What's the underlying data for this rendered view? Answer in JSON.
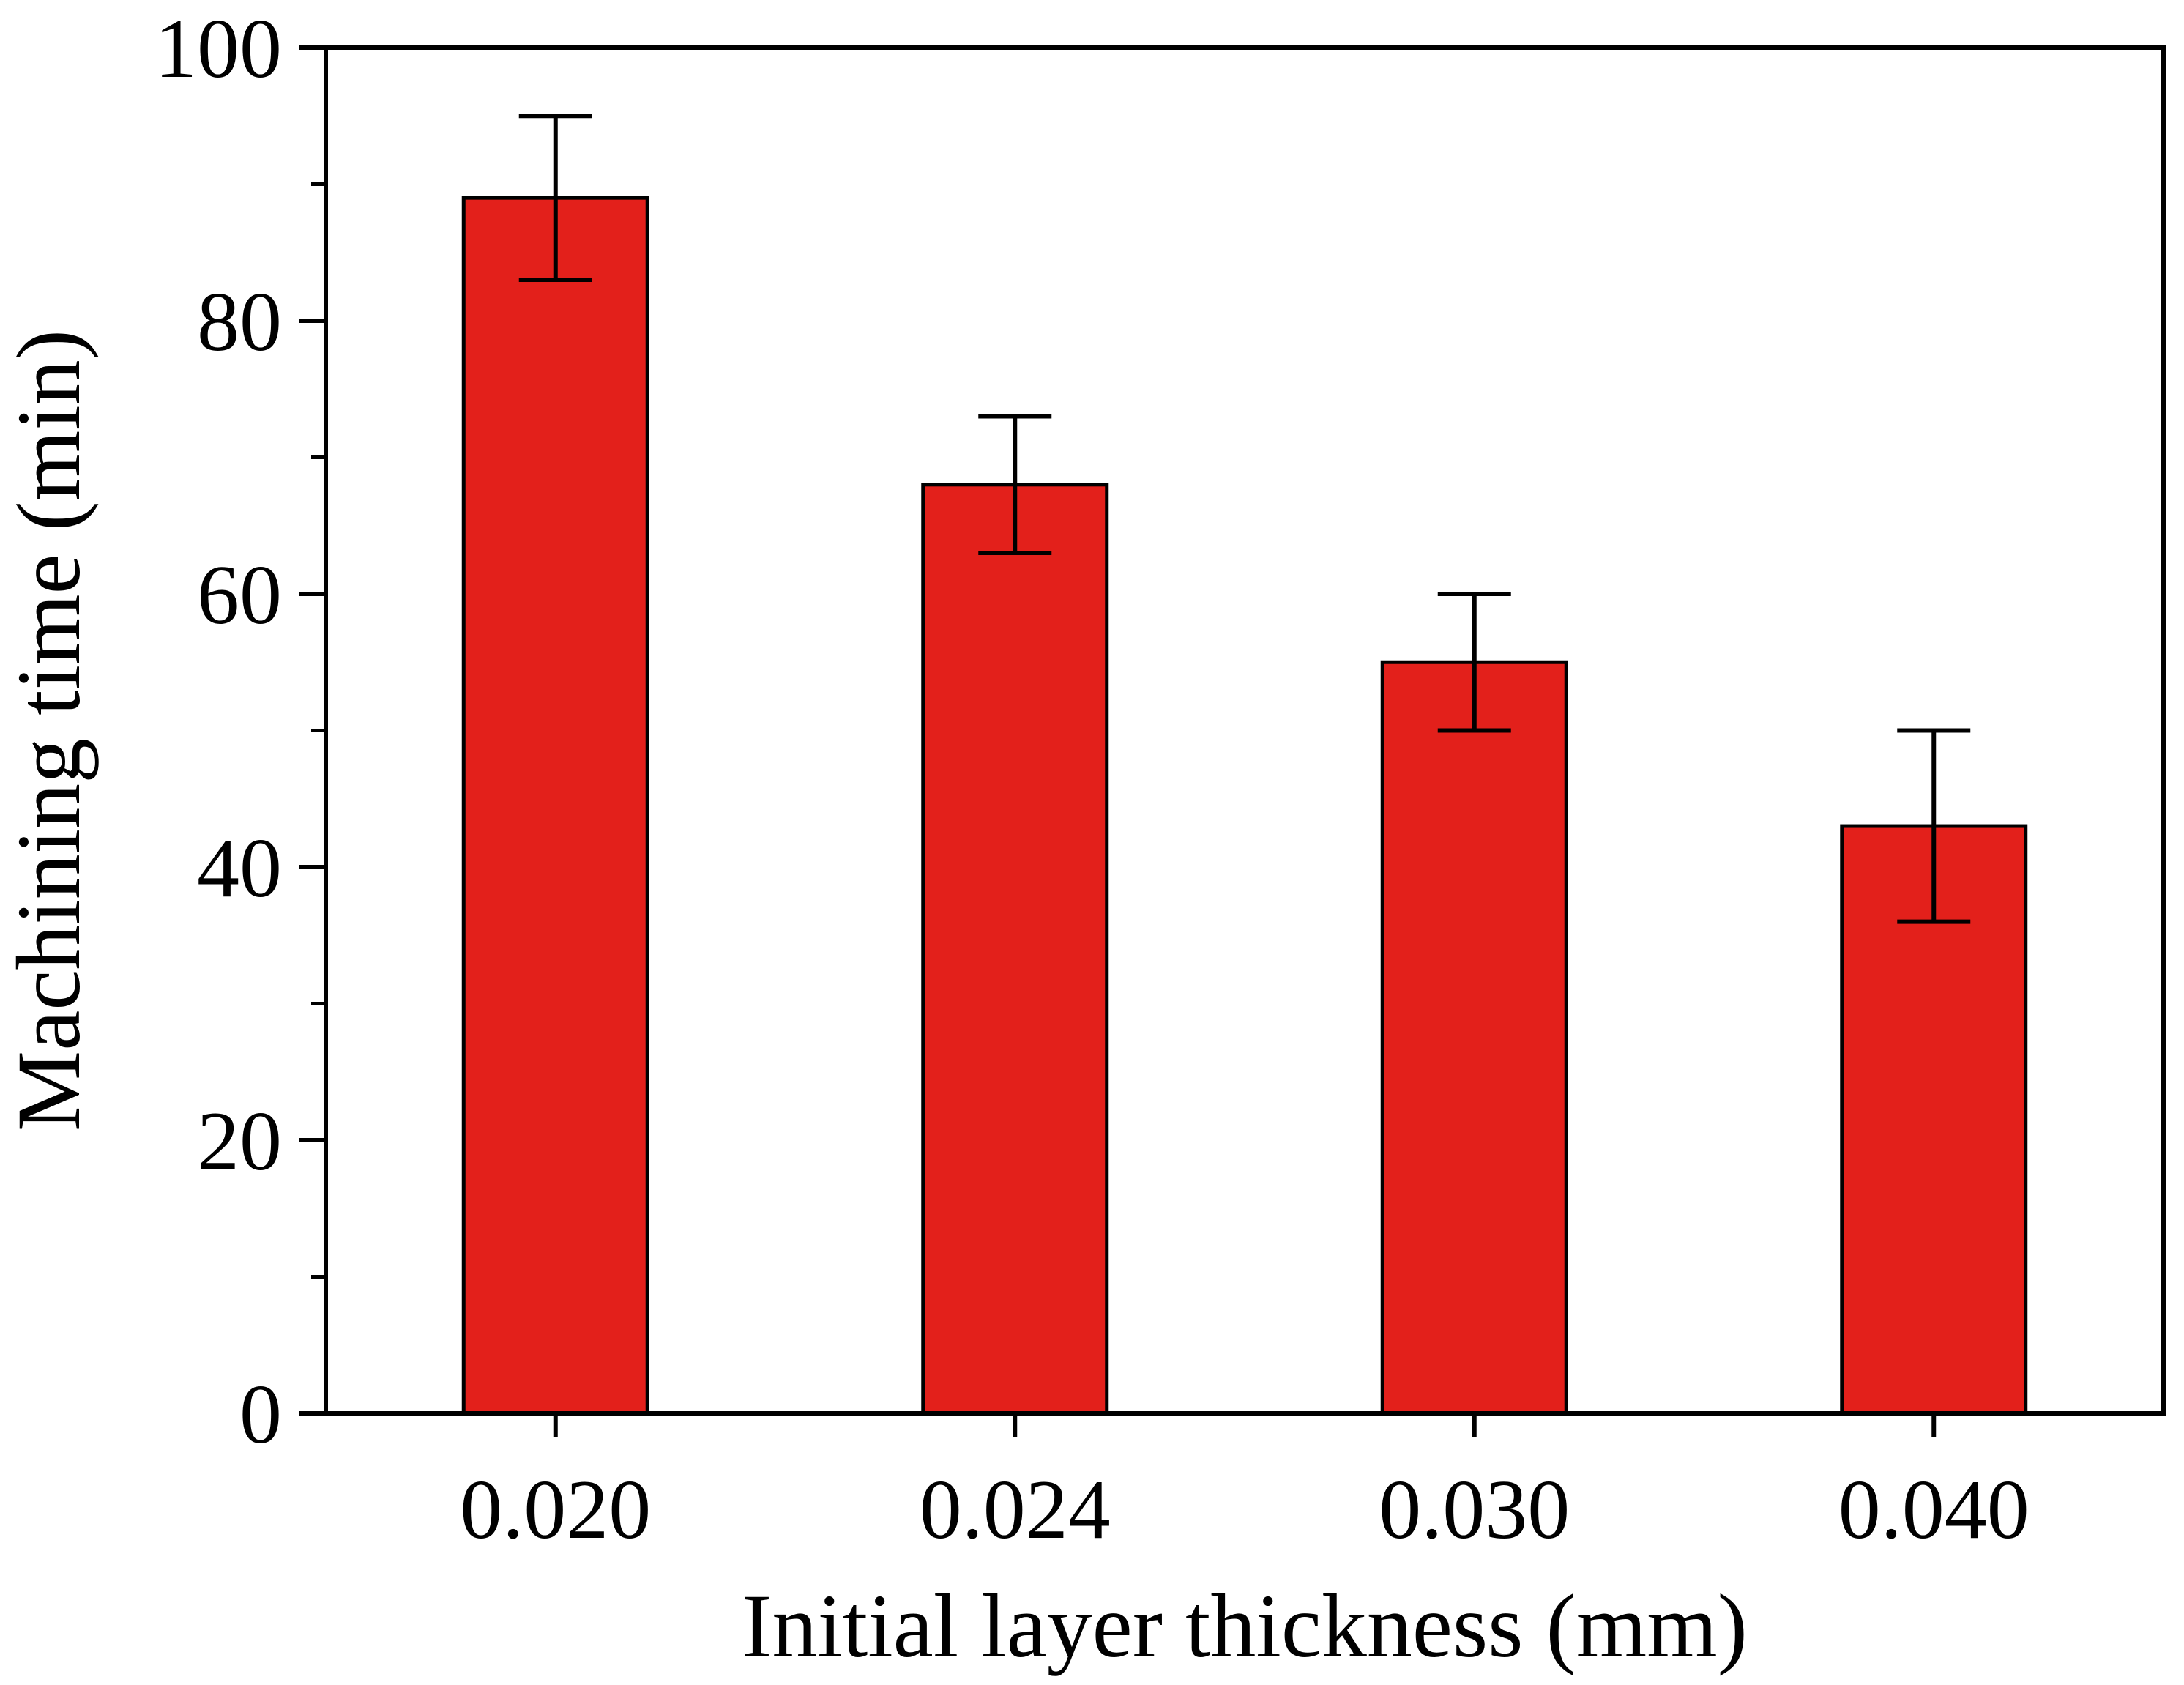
{
  "chart_data": {
    "type": "bar",
    "title": "",
    "xlabel": "Initial layer thickness (mm)",
    "ylabel": "Machining time (min)",
    "categories": [
      "0.020",
      "0.024",
      "0.030",
      "0.040"
    ],
    "values": [
      89,
      68,
      55,
      43
    ],
    "error_low": [
      83,
      63,
      50,
      36
    ],
    "error_high": [
      95,
      73,
      60,
      50
    ],
    "ylim": [
      0,
      100
    ],
    "yticks": [
      0,
      20,
      40,
      60,
      80,
      100
    ],
    "y_minor_step": 10,
    "grid": false,
    "bar_color": "#e3201b",
    "edge_color": "#000000"
  }
}
